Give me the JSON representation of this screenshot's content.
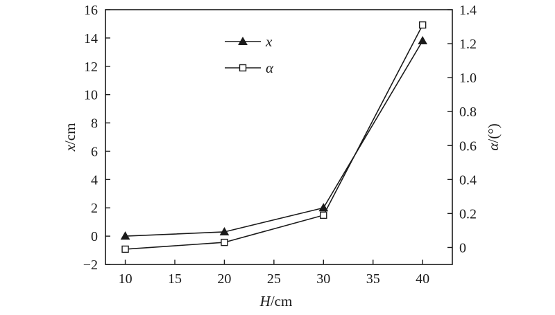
{
  "chart_data": {
    "type": "line",
    "x": [
      10,
      20,
      30,
      40
    ],
    "xlabel": {
      "var": "H",
      "unit": "/cm"
    },
    "xlim": [
      8,
      43
    ],
    "xticks": [
      "10",
      "15",
      "20",
      "25",
      "30",
      "35",
      "40"
    ],
    "ylabel_left": {
      "var": "x",
      "unit": "/cm"
    },
    "ylim_left": [
      -2,
      16
    ],
    "yticks_left": [
      "−2",
      "0",
      "2",
      "4",
      "6",
      "8",
      "10",
      "12",
      "14",
      "16"
    ],
    "ylabel_right": {
      "var": "α",
      "unit": "/(°)"
    },
    "ylim_right": [
      -0.1,
      1.4
    ],
    "yticks_right": [
      "0",
      "0.2",
      "0.4",
      "0.6",
      "0.8",
      "1.0",
      "1.2",
      "1.4"
    ],
    "grid": false,
    "legend_position": "top-center",
    "series": [
      {
        "name": "x",
        "axis": "left",
        "marker": "filled-triangle",
        "values": [
          0,
          0.3,
          2.0,
          13.8
        ]
      },
      {
        "name": "α",
        "axis": "right",
        "marker": "open-square",
        "values": [
          -0.01,
          0.03,
          0.19,
          1.31
        ]
      }
    ]
  }
}
